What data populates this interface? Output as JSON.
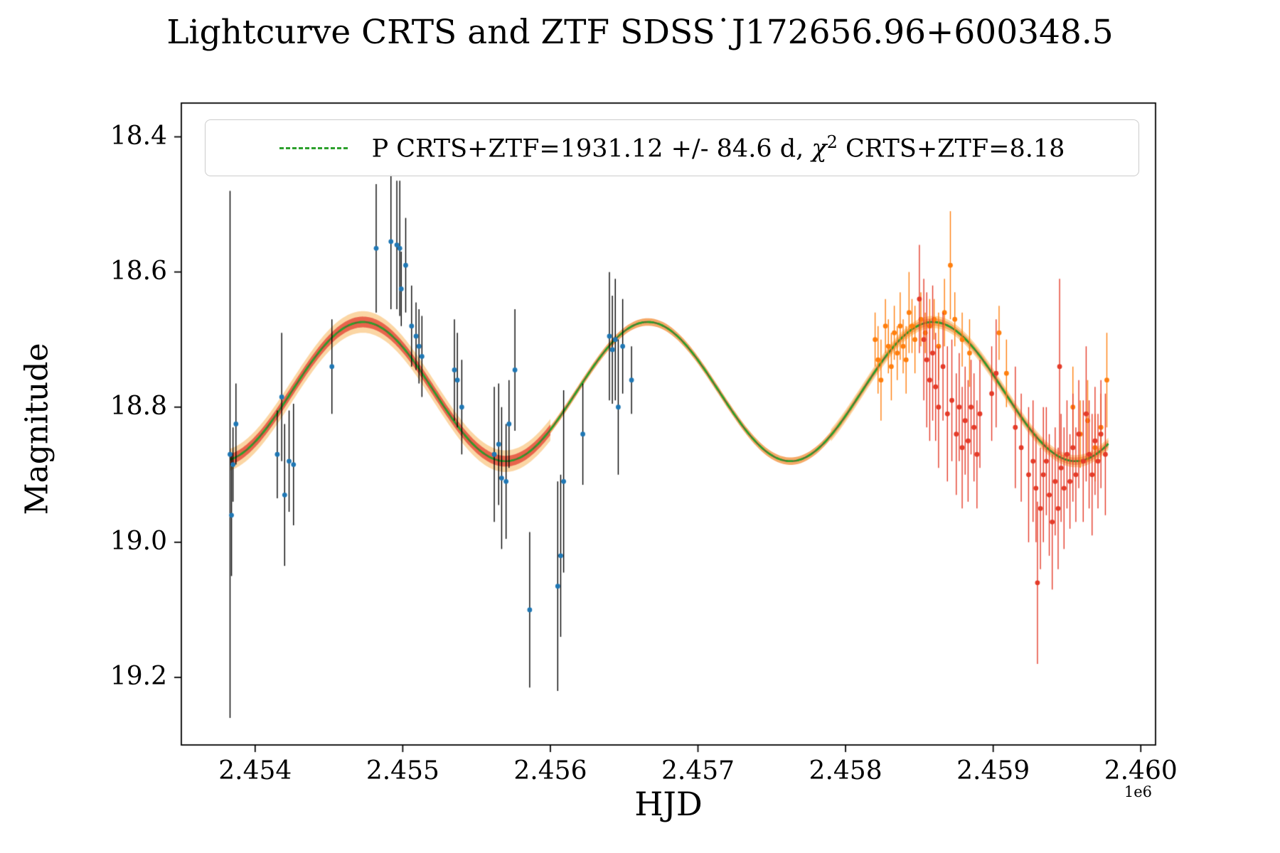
{
  "title": "Lightcurve CRTS and ZTF SDSS˙J172656.96+600348.5",
  "legend": {
    "label_part1": "P CRTS+ZTF=1931.12 +/- 84.6 d, ",
    "chi_symbol": "χ",
    "chi_exponent": "2",
    "label_part2": " CRTS+ZTF=8.18",
    "line_color": "#2ca02c",
    "line_style": "dashed"
  },
  "axes": {
    "xlabel": "HJD",
    "ylabel": "Magnitude",
    "x_offset_label": "1e6",
    "x_ticks": [
      "2.454",
      "2.455",
      "2.456",
      "2.457",
      "2.458",
      "2.459",
      "2.460"
    ],
    "y_ticks": [
      "18.4",
      "18.6",
      "18.8",
      "19.0",
      "19.2"
    ],
    "xlim": [
      2.4535,
      2.4601
    ],
    "ylim_top": 18.35,
    "ylim_bottom": 19.3,
    "y_inverted": true,
    "grid": false
  },
  "chart_data": {
    "type": "scatter",
    "title": "Lightcurve CRTS and ZTF SDSS J172656.96+600348.5",
    "xlabel": "HJD",
    "ylabel": "Magnitude",
    "x_scale": "1e6",
    "legend_position": "upper center",
    "model": {
      "type": "sinusoid",
      "period_days": 1931.12,
      "period_err_days": 84.6,
      "chi2": 8.18,
      "mean_mag": 18.777,
      "amplitude_mag": 0.103,
      "peak_hjd_1e6": 2.45473,
      "x_start": 2.45383,
      "x_end": 2.45978,
      "dash_color": "#2ca02c",
      "base_color": "#4a7c2f"
    },
    "bands": [
      {
        "x_start": 2.45383,
        "x_end": 2.456,
        "half_width": 0.016,
        "color": "#fbd49f",
        "alpha": 0.95
      },
      {
        "x_start": 2.4579,
        "x_end": 2.45978,
        "half_width": 0.009,
        "color": "#fbd49f",
        "alpha": 0.95
      },
      {
        "x_start": 2.45383,
        "x_end": 2.45978,
        "half_width": 0.0055,
        "color": "#f4a45f",
        "alpha": 0.95
      },
      {
        "x_start": 2.45383,
        "x_end": 2.456,
        "half_width": 0.008,
        "color": "#e7604a",
        "alpha": 0.95
      }
    ],
    "series": [
      {
        "name": "crts_blue",
        "marker_color": "#1f77b4",
        "errorbar_color": "#000000",
        "points": [
          [
            2.45383,
            18.87,
            0.39
          ],
          [
            2.45384,
            18.96,
            0.09
          ],
          [
            2.45385,
            18.885,
            0.055
          ],
          [
            2.45387,
            18.825,
            0.06
          ],
          [
            2.45415,
            18.87,
            0.065
          ],
          [
            2.45418,
            18.785,
            0.095
          ],
          [
            2.4542,
            18.93,
            0.105
          ],
          [
            2.45423,
            18.88,
            0.075
          ],
          [
            2.45426,
            18.885,
            0.09
          ],
          [
            2.45452,
            18.74,
            0.07
          ],
          [
            2.45482,
            18.565,
            0.095
          ],
          [
            2.45492,
            18.555,
            0.1
          ],
          [
            2.45496,
            18.56,
            0.095
          ],
          [
            2.45498,
            18.565,
            0.1
          ],
          [
            2.45499,
            18.625,
            0.055
          ],
          [
            2.45502,
            18.59,
            0.07
          ],
          [
            2.45506,
            18.68,
            0.06
          ],
          [
            2.45509,
            18.695,
            0.05
          ],
          [
            2.45511,
            18.71,
            0.055
          ],
          [
            2.45513,
            18.725,
            0.06
          ],
          [
            2.45535,
            18.745,
            0.075
          ],
          [
            2.45537,
            18.76,
            0.07
          ],
          [
            2.4554,
            18.8,
            0.07
          ],
          [
            2.45562,
            18.87,
            0.1
          ],
          [
            2.45565,
            18.855,
            0.09
          ],
          [
            2.45567,
            18.905,
            0.105
          ],
          [
            2.4557,
            18.91,
            0.085
          ],
          [
            2.45572,
            18.825,
            0.065
          ],
          [
            2.45576,
            18.745,
            0.09
          ],
          [
            2.45586,
            19.1,
            0.115
          ],
          [
            2.45605,
            19.065,
            0.155
          ],
          [
            2.45607,
            19.02,
            0.12
          ],
          [
            2.45609,
            18.91,
            0.135
          ],
          [
            2.45622,
            18.84,
            0.075
          ],
          [
            2.4564,
            18.695,
            0.095
          ],
          [
            2.45642,
            18.715,
            0.08
          ],
          [
            2.45644,
            18.7,
            0.09
          ],
          [
            2.45646,
            18.8,
            0.1
          ],
          [
            2.45649,
            18.71,
            0.07
          ],
          [
            2.45655,
            18.76,
            0.05
          ]
        ]
      },
      {
        "name": "ztf_orange",
        "marker_color": "#ff7f0e",
        "errorbar_color": "#ff7f0e",
        "points": [
          [
            2.4582,
            18.7,
            0.04
          ],
          [
            2.45822,
            18.73,
            0.05
          ],
          [
            2.45824,
            18.76,
            0.06
          ],
          [
            2.45827,
            18.68,
            0.04
          ],
          [
            2.45829,
            18.71,
            0.04
          ],
          [
            2.45831,
            18.74,
            0.05
          ],
          [
            2.45833,
            18.69,
            0.04
          ],
          [
            2.45835,
            18.72,
            0.04
          ],
          [
            2.45837,
            18.68,
            0.05
          ],
          [
            2.45839,
            18.71,
            0.04
          ],
          [
            2.45841,
            18.73,
            0.05
          ],
          [
            2.45843,
            18.66,
            0.06
          ],
          [
            2.45845,
            18.68,
            0.04
          ],
          [
            2.45847,
            18.7,
            0.05
          ],
          [
            2.45851,
            18.67,
            0.04
          ],
          [
            2.45854,
            18.69,
            0.03
          ],
          [
            2.45857,
            18.68,
            0.04
          ],
          [
            2.4586,
            18.67,
            0.03
          ],
          [
            2.45863,
            18.71,
            0.05
          ],
          [
            2.45867,
            18.66,
            0.05
          ],
          [
            2.45871,
            18.59,
            0.08
          ],
          [
            2.45874,
            18.67,
            0.04
          ],
          [
            2.45879,
            18.7,
            0.04
          ],
          [
            2.45884,
            18.72,
            0.05
          ],
          [
            2.45904,
            18.69,
            0.04
          ],
          [
            2.45909,
            18.75,
            0.05
          ],
          [
            2.45954,
            18.8,
            0.06
          ],
          [
            2.45959,
            18.84,
            0.05
          ],
          [
            2.45964,
            18.82,
            0.06
          ],
          [
            2.45969,
            18.86,
            0.05
          ],
          [
            2.45973,
            18.83,
            0.05
          ],
          [
            2.45977,
            18.76,
            0.07
          ]
        ]
      },
      {
        "name": "ztf_red",
        "marker_color": "#e43b29",
        "errorbar_color": "#e43b29",
        "points": [
          [
            2.4585,
            18.64,
            0.08
          ],
          [
            2.45853,
            18.7,
            0.09
          ],
          [
            2.45855,
            18.73,
            0.1
          ],
          [
            2.45857,
            18.76,
            0.09
          ],
          [
            2.45859,
            18.72,
            0.1
          ],
          [
            2.45861,
            18.77,
            0.08
          ],
          [
            2.45863,
            18.8,
            0.09
          ],
          [
            2.45866,
            18.74,
            0.08
          ],
          [
            2.45869,
            18.81,
            0.1
          ],
          [
            2.45872,
            18.79,
            0.09
          ],
          [
            2.45875,
            18.84,
            0.09
          ],
          [
            2.45877,
            18.8,
            0.08
          ],
          [
            2.45879,
            18.86,
            0.09
          ],
          [
            2.45881,
            18.82,
            0.08
          ],
          [
            2.45883,
            18.85,
            0.09
          ],
          [
            2.45885,
            18.8,
            0.07
          ],
          [
            2.45887,
            18.83,
            0.08
          ],
          [
            2.45889,
            18.87,
            0.08
          ],
          [
            2.45891,
            18.81,
            0.08
          ],
          [
            2.45899,
            18.78,
            0.07
          ],
          [
            2.45902,
            18.75,
            0.08
          ],
          [
            2.45915,
            18.83,
            0.09
          ],
          [
            2.45919,
            18.86,
            0.08
          ],
          [
            2.45924,
            18.9,
            0.1
          ],
          [
            2.45927,
            18.88,
            0.09
          ],
          [
            2.45929,
            18.92,
            0.08
          ],
          [
            2.4593,
            19.06,
            0.12
          ],
          [
            2.45932,
            18.95,
            0.09
          ],
          [
            2.45934,
            18.9,
            0.1
          ],
          [
            2.45936,
            18.88,
            0.08
          ],
          [
            2.45938,
            18.93,
            0.09
          ],
          [
            2.4594,
            18.97,
            0.1
          ],
          [
            2.45942,
            18.91,
            0.08
          ],
          [
            2.45944,
            18.95,
            0.09
          ],
          [
            2.45945,
            18.74,
            0.13
          ],
          [
            2.45946,
            18.89,
            0.08
          ],
          [
            2.45948,
            18.92,
            0.09
          ],
          [
            2.4595,
            18.87,
            0.08
          ],
          [
            2.45952,
            18.91,
            0.07
          ],
          [
            2.45954,
            18.86,
            0.08
          ],
          [
            2.45956,
            18.9,
            0.07
          ],
          [
            2.45958,
            18.84,
            0.08
          ],
          [
            2.45961,
            18.88,
            0.09
          ],
          [
            2.45963,
            18.81,
            0.1
          ],
          [
            2.45965,
            18.87,
            0.08
          ],
          [
            2.45967,
            18.9,
            0.09
          ],
          [
            2.45969,
            18.85,
            0.08
          ],
          [
            2.45971,
            18.88,
            0.07
          ],
          [
            2.45973,
            18.84,
            0.08
          ],
          [
            2.45976,
            18.87,
            0.09
          ]
        ]
      }
    ]
  }
}
